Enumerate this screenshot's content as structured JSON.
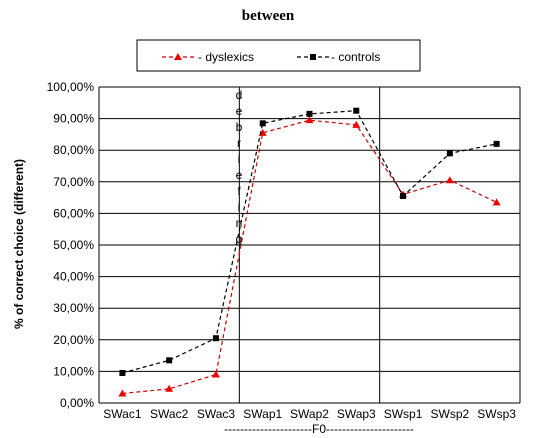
{
  "chart_data": {
    "type": "line",
    "title": "between",
    "ylabel": "% of correct choice (different)",
    "x_group_label": "----------------------F0----------------------",
    "categories": [
      "SWac1",
      "SWac2",
      "SWac3",
      "SWap1",
      "SWap2",
      "SWap3",
      "SWsp1",
      "SWsp2",
      "SWsp3"
    ],
    "yticks": [
      "0,00%",
      "10,00%",
      "20,00%",
      "30,00%",
      "40,00%",
      "50,00%",
      "60,00%",
      "70,00%",
      "80,00%",
      "90,00%",
      "100,00%"
    ],
    "ylim": [
      0,
      100
    ],
    "grid": true,
    "legend_position": "top",
    "vertical_annotation": [
      "d",
      "e",
      "b",
      "r",
      "i",
      "e",
      "f",
      "i",
      "n",
      "g"
    ],
    "series": [
      {
        "name": "dyslexics",
        "legend_label": "- dyslexics",
        "color": "#cc0000",
        "marker": "triangle",
        "values": [
          3,
          4.5,
          9,
          85.5,
          89.5,
          88,
          66,
          70.5,
          63.5
        ]
      },
      {
        "name": "controls",
        "legend_label": "- controls",
        "color": "#000000",
        "marker": "square",
        "values": [
          9.5,
          13.5,
          20.5,
          88.5,
          91.5,
          92.5,
          65.5,
          79,
          82
        ]
      }
    ]
  }
}
